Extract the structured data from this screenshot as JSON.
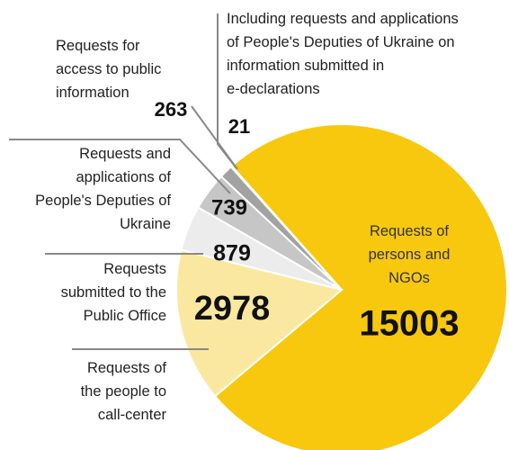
{
  "chart_data": {
    "type": "pie",
    "categories": [
      [
        "Requests of",
        "persons and",
        "NGOs"
      ],
      [
        "Requests of",
        "the people to",
        "call-center"
      ],
      [
        "Requests",
        "submitted to the",
        "Public Office"
      ],
      [
        "Requests and",
        "applications of",
        "People's Deputies of",
        "Ukraine"
      ],
      [
        "Requests for",
        "access to public",
        "information"
      ],
      [
        "Including requests and applications",
        "of People's Deputies of Ukraine on",
        "information submitted in",
        "e-declarations"
      ]
    ],
    "values": [
      15003,
      2978,
      879,
      739,
      263,
      21
    ],
    "colors": [
      "#f8c80f",
      "#fbe8a0",
      "#ececec",
      "#c6c6c6",
      "#a2a2a2",
      "#7c7c7c"
    ]
  }
}
